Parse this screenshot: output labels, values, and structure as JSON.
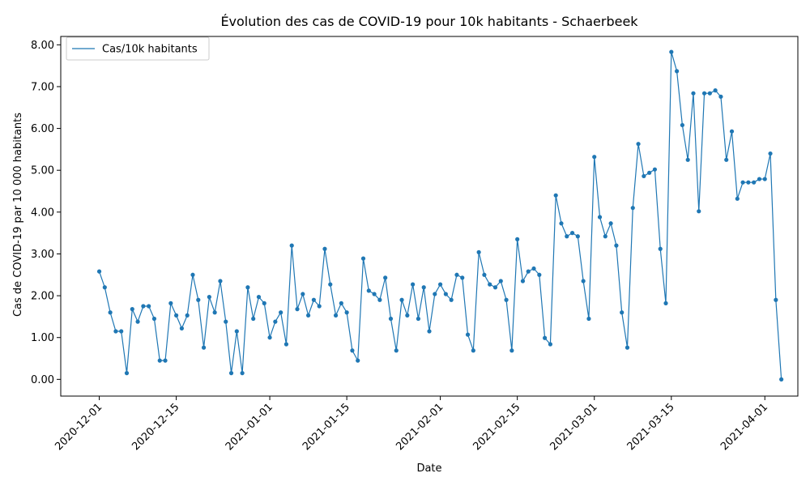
{
  "chart_data": {
    "type": "line",
    "title": "Évolution des cas de COVID-19 pour 10k habitants - Schaerbeek",
    "xlabel": "Date",
    "ylabel": "Cas de COVID-19 par 10 000 habitants",
    "x_start": "2020-12-01",
    "x_tick_labels": [
      "2020-12-01",
      "2020-12-15",
      "2021-01-01",
      "2021-01-15",
      "2021-02-01",
      "2021-02-15",
      "2021-03-01",
      "2021-03-15",
      "2021-04-01"
    ],
    "y_tick_labels": [
      "0.00",
      "1.00",
      "2.00",
      "3.00",
      "4.00",
      "5.00",
      "6.00",
      "7.00",
      "8.00"
    ],
    "ylim": [
      -0.4,
      8.2
    ],
    "xlim": [
      "2020-11-24",
      "2021-04-07"
    ],
    "legend_position": "top-left",
    "series": [
      {
        "name": "Cas/10k habitants",
        "color": "#1f77b4",
        "x": [
          "2020-12-01",
          "2020-12-02",
          "2020-12-03",
          "2020-12-04",
          "2020-12-05",
          "2020-12-06",
          "2020-12-07",
          "2020-12-08",
          "2020-12-09",
          "2020-12-10",
          "2020-12-11",
          "2020-12-12",
          "2020-12-13",
          "2020-12-14",
          "2020-12-15",
          "2020-12-16",
          "2020-12-17",
          "2020-12-18",
          "2020-12-19",
          "2020-12-20",
          "2020-12-21",
          "2020-12-22",
          "2020-12-23",
          "2020-12-24",
          "2020-12-25",
          "2020-12-26",
          "2020-12-27",
          "2020-12-28",
          "2020-12-29",
          "2020-12-30",
          "2020-12-31",
          "2021-01-01",
          "2021-01-02",
          "2021-01-03",
          "2021-01-04",
          "2021-01-05",
          "2021-01-06",
          "2021-01-07",
          "2021-01-08",
          "2021-01-09",
          "2021-01-10",
          "2021-01-11",
          "2021-01-12",
          "2021-01-13",
          "2021-01-14",
          "2021-01-15",
          "2021-01-16",
          "2021-01-17",
          "2021-01-18",
          "2021-01-19",
          "2021-01-20",
          "2021-01-21",
          "2021-01-22",
          "2021-01-23",
          "2021-01-24",
          "2021-01-25",
          "2021-01-26",
          "2021-01-27",
          "2021-01-28",
          "2021-01-29",
          "2021-01-30",
          "2021-01-31",
          "2021-02-01",
          "2021-02-02",
          "2021-02-03",
          "2021-02-04",
          "2021-02-05",
          "2021-02-06",
          "2021-02-07",
          "2021-02-08",
          "2021-02-09",
          "2021-02-10",
          "2021-02-11",
          "2021-02-12",
          "2021-02-13",
          "2021-02-14",
          "2021-02-15",
          "2021-02-16",
          "2021-02-17",
          "2021-02-18",
          "2021-02-19",
          "2021-02-20",
          "2021-02-21",
          "2021-02-22",
          "2021-02-23",
          "2021-02-24",
          "2021-02-25",
          "2021-02-26",
          "2021-02-27",
          "2021-02-28",
          "2021-03-01",
          "2021-03-02",
          "2021-03-03",
          "2021-03-04",
          "2021-03-05",
          "2021-03-06",
          "2021-03-07",
          "2021-03-08",
          "2021-03-09",
          "2021-03-10",
          "2021-03-11",
          "2021-03-12",
          "2021-03-13",
          "2021-03-14",
          "2021-03-15",
          "2021-03-16",
          "2021-03-17",
          "2021-03-18",
          "2021-03-19",
          "2021-03-20",
          "2021-03-21",
          "2021-03-22",
          "2021-03-23",
          "2021-03-24",
          "2021-03-25",
          "2021-03-26",
          "2021-03-27",
          "2021-03-28",
          "2021-03-29",
          "2021-03-30",
          "2021-03-31",
          "2021-04-01",
          "2021-04-02",
          "2021-04-03",
          "2021-04-04"
        ],
        "values": [
          2.58,
          2.2,
          1.6,
          1.15,
          1.15,
          0.15,
          1.68,
          1.38,
          1.75,
          1.75,
          1.45,
          0.45,
          0.45,
          1.82,
          1.53,
          1.22,
          1.53,
          2.5,
          1.9,
          0.76,
          1.97,
          1.6,
          2.35,
          1.38,
          0.15,
          1.15,
          0.15,
          2.2,
          1.45,
          1.97,
          1.82,
          1.0,
          1.38,
          1.6,
          0.84,
          3.2,
          1.68,
          2.04,
          1.53,
          1.9,
          1.75,
          3.12,
          2.27,
          1.53,
          1.82,
          1.6,
          0.69,
          0.45,
          2.89,
          2.12,
          2.04,
          1.9,
          2.43,
          1.45,
          0.69,
          1.9,
          1.53,
          2.27,
          1.45,
          2.2,
          1.15,
          2.04,
          2.27,
          2.04,
          1.9,
          2.5,
          2.43,
          1.07,
          0.69,
          3.04,
          2.5,
          2.27,
          2.2,
          2.35,
          1.9,
          0.69,
          3.35,
          2.35,
          2.58,
          2.65,
          2.5,
          0.99,
          0.84,
          4.4,
          3.73,
          3.42,
          3.5,
          3.42,
          2.35,
          1.45,
          5.32,
          3.88,
          3.42,
          3.73,
          3.2,
          1.6,
          0.76,
          4.1,
          5.63,
          4.86,
          4.94,
          5.02,
          3.12,
          1.82,
          7.83,
          7.37,
          6.08,
          5.25,
          6.84,
          4.02,
          6.84,
          6.84,
          6.91,
          6.76,
          5.25,
          5.93,
          4.32,
          4.71,
          4.71,
          4.71,
          4.79,
          4.79,
          5.4,
          1.9,
          0.0
        ]
      }
    ]
  }
}
